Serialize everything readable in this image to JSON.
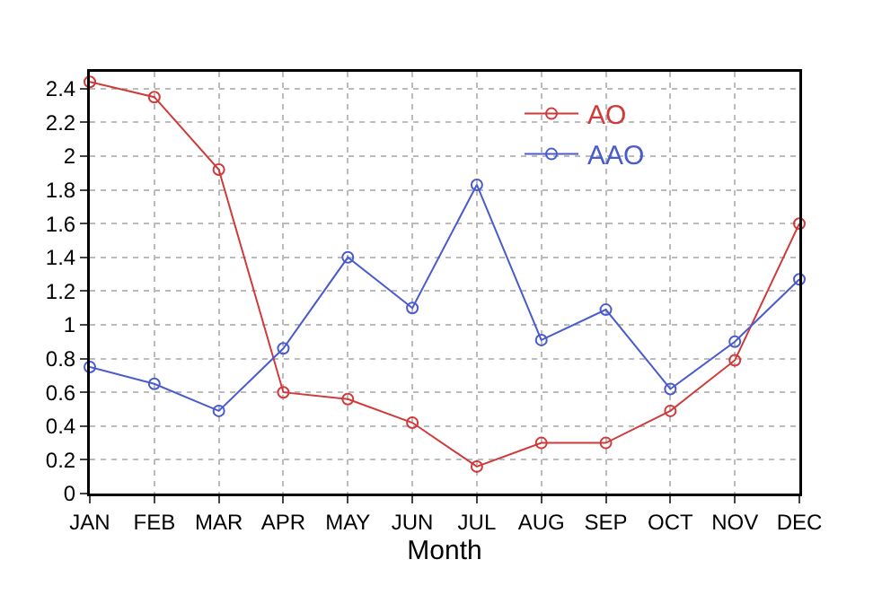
{
  "chart_data": {
    "type": "line",
    "xlabel": "Month",
    "categories": [
      "JAN",
      "FEB",
      "MAR",
      "APR",
      "MAY",
      "JUN",
      "JUL",
      "AUG",
      "SEP",
      "OCT",
      "NOV",
      "DEC"
    ],
    "series": [
      {
        "name": "AO",
        "color": "#d03a3a",
        "values": [
          2.44,
          2.35,
          1.92,
          0.6,
          0.56,
          0.42,
          0.16,
          0.3,
          0.3,
          0.49,
          0.79,
          1.6
        ]
      },
      {
        "name": "AAO",
        "color": "#4a5ccc",
        "values": [
          0.75,
          0.65,
          0.49,
          0.86,
          1.4,
          1.1,
          1.83,
          0.91,
          1.09,
          0.62,
          0.9,
          1.27
        ]
      }
    ],
    "ylim": [
      0,
      2.5
    ],
    "yticks": [
      0,
      0.2,
      0.4,
      0.6,
      0.8,
      1,
      1.2,
      1.4,
      1.6,
      1.8,
      2,
      2.2,
      2.4
    ],
    "grid": true,
    "legend": "top right",
    "marker": "circle",
    "line_style": "solid"
  }
}
